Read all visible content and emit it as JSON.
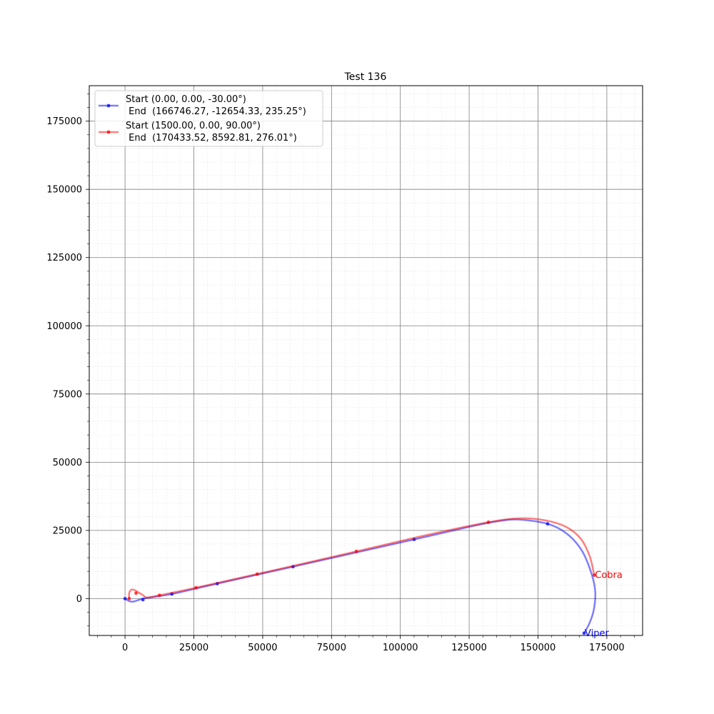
{
  "chart_data": {
    "type": "line",
    "title": "Test 136",
    "xlabel": "",
    "ylabel": "",
    "xlim": [
      -13000,
      188000
    ],
    "ylim": [
      -13500,
      188000
    ],
    "xticks": [
      0,
      25000,
      50000,
      75000,
      100000,
      125000,
      150000,
      175000
    ],
    "yticks": [
      0,
      25000,
      50000,
      75000,
      100000,
      125000,
      150000,
      175000
    ],
    "grid": true,
    "legend_position": "top-left",
    "series": [
      {
        "name": "Start (0.00, 0.00, -30.00°)\n End  (166746.27, -12654.33, 235.25°)",
        "legend_line1": "Start (0.00, 0.00, -30.00°)",
        "legend_line2": " End  (166746.27, -12654.33, 235.25°)",
        "color": "#0000ff",
        "end_label": "Viper",
        "points": [
          [
            0,
            0
          ],
          [
            1500,
            -900
          ],
          [
            3000,
            -1100
          ],
          [
            5500,
            -300
          ],
          [
            7500,
            200
          ],
          [
            17000,
            1700
          ],
          [
            33500,
            5500
          ],
          [
            61000,
            11700
          ],
          [
            105000,
            21700
          ],
          [
            125000,
            26300
          ],
          [
            135000,
            28300
          ],
          [
            143000,
            29000
          ],
          [
            153500,
            27400
          ],
          [
            160500,
            23800
          ],
          [
            166000,
            17500
          ],
          [
            169500,
            9000
          ],
          [
            170800,
            2500
          ],
          [
            170300,
            -4000
          ],
          [
            168700,
            -9000
          ],
          [
            166746,
            -12654
          ]
        ],
        "markers": [
          [
            0,
            0
          ],
          [
            6500,
            -400
          ],
          [
            17000,
            1700
          ],
          [
            33500,
            5500
          ],
          [
            61000,
            11700
          ],
          [
            105000,
            21700
          ],
          [
            153500,
            27400
          ],
          [
            166746,
            -12654
          ]
        ]
      },
      {
        "name": "Start (1500.00, 0.00, 90.00°)\n End  (170433.52, 8592.81, 276.01°)",
        "legend_line1": "Start (1500.00, 0.00, 90.00°)",
        "legend_line2": " End  (170433.52, 8592.81, 276.01°)",
        "color": "#ff0000",
        "end_label": "Cobra",
        "points": [
          [
            1500,
            0
          ],
          [
            1500,
            2000
          ],
          [
            2300,
            3300
          ],
          [
            3500,
            3100
          ],
          [
            5000,
            2200
          ],
          [
            6500,
            1300
          ],
          [
            8000,
            400
          ],
          [
            12500,
            1200
          ],
          [
            25800,
            4000
          ],
          [
            48000,
            9000
          ],
          [
            84000,
            17300
          ],
          [
            110000,
            23400
          ],
          [
            132000,
            28000
          ],
          [
            143000,
            29400
          ],
          [
            152000,
            28800
          ],
          [
            160000,
            26400
          ],
          [
            165500,
            22000
          ],
          [
            168800,
            15500
          ],
          [
            170433,
            8593
          ]
        ],
        "markers": [
          [
            1500,
            0
          ],
          [
            4000,
            2000
          ],
          [
            12500,
            1200
          ],
          [
            25800,
            4000
          ],
          [
            48000,
            9000
          ],
          [
            84000,
            17300
          ],
          [
            132000,
            28000
          ],
          [
            170433,
            8593
          ]
        ]
      }
    ]
  }
}
